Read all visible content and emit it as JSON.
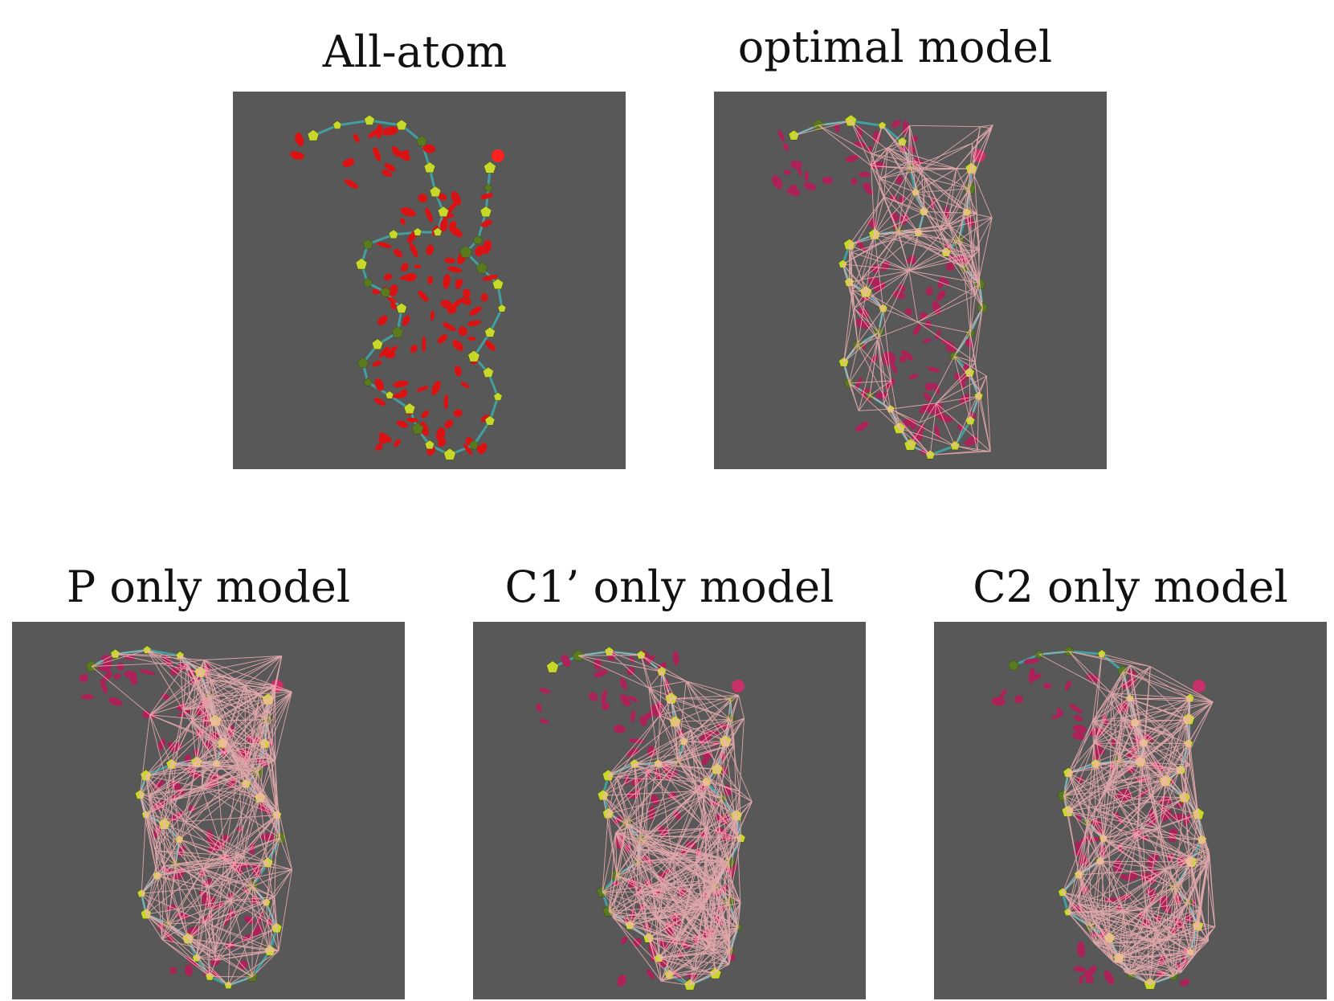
{
  "panels": [
    {
      "title": "All-atom",
      "variant": "allatom",
      "seed": 11
    },
    {
      "title": "optimal model",
      "variant": "network",
      "seed": 23
    },
    {
      "title": "P only model",
      "variant": "network",
      "seed": 37
    },
    {
      "title": "C1’ only model",
      "variant": "network",
      "seed": 51
    },
    {
      "title": "C2 only model",
      "variant": "network",
      "seed": 67
    }
  ],
  "colors": {
    "panel_bg": "#585858",
    "backbone": "#3fa7a7",
    "allatom_base": "#e01010",
    "network_base": "#b0205a",
    "sugar": "#c8d82a",
    "sugar_dark": "#5a7a20",
    "network_lines": "#f6b4b8",
    "terminal_sphere_allatom": "#ff2020",
    "terminal_sphere_network": "#c8306a"
  }
}
